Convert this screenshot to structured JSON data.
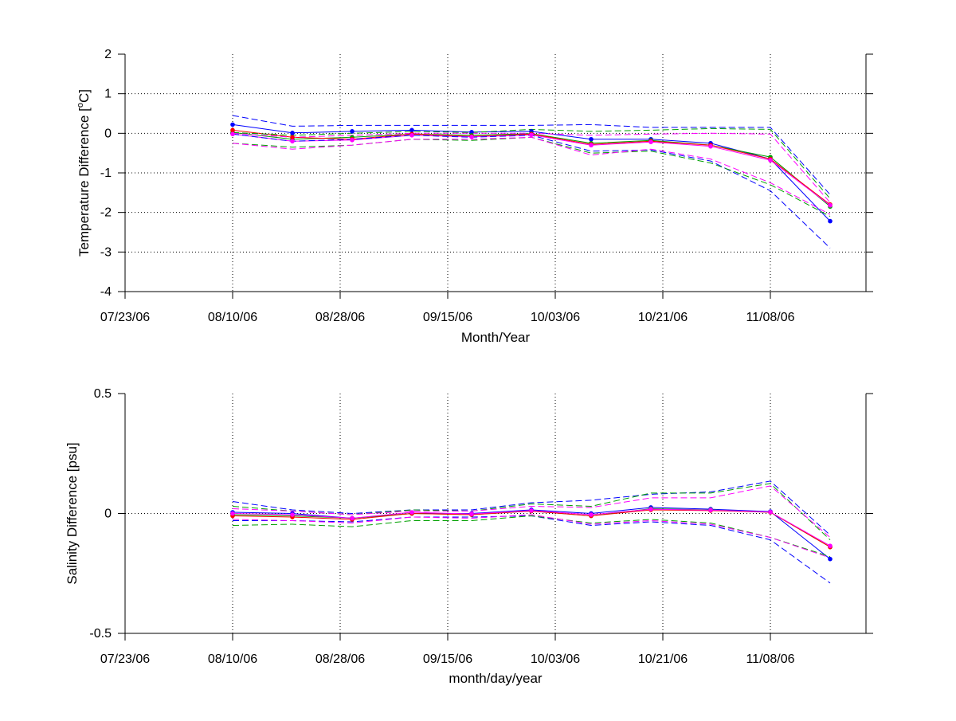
{
  "chart_data": [
    {
      "type": "line",
      "xlabel": "Month/Year",
      "ylabel_main": "Temperature Difference [",
      "ylabel_sup": "o",
      "ylabel_end": "C]",
      "xlim": [
        "2006-07-23",
        "2006-11-24"
      ],
      "ylim": [
        -4,
        2
      ],
      "xticks": [
        {
          "date": "2006-07-23",
          "label": "07/23/06"
        },
        {
          "date": "2006-08-10",
          "label": "08/10/06"
        },
        {
          "date": "2006-08-28",
          "label": "08/28/06"
        },
        {
          "date": "2006-09-15",
          "label": "09/15/06"
        },
        {
          "date": "2006-10-03",
          "label": "10/03/06"
        },
        {
          "date": "2006-10-21",
          "label": "10/21/06"
        },
        {
          "date": "2006-11-08",
          "label": "11/08/06"
        }
      ],
      "yticks": [
        {
          "value": 2,
          "label": "2"
        },
        {
          "value": 1,
          "label": "1"
        },
        {
          "value": 0,
          "label": "0"
        },
        {
          "value": -1,
          "label": "-1"
        },
        {
          "value": -2,
          "label": "-2"
        },
        {
          "value": -3,
          "label": "-3"
        },
        {
          "value": -4,
          "label": "-4"
        }
      ],
      "grid": true,
      "x": [
        "2006-08-10",
        "2006-08-20",
        "2006-08-30",
        "2006-09-09",
        "2006-09-19",
        "2006-09-29",
        "2006-10-09",
        "2006-10-19",
        "2006-10-29",
        "2006-11-08",
        "2006-11-18"
      ],
      "series": [
        {
          "color": "#0000ff",
          "style": "solid",
          "marker": true,
          "values": [
            0.22,
            0.01,
            0.05,
            0.08,
            0.03,
            0.05,
            -0.15,
            -0.15,
            -0.25,
            -0.65,
            -2.22
          ]
        },
        {
          "color": "#00a000",
          "style": "solid",
          "marker": true,
          "values": [
            0.02,
            -0.15,
            -0.1,
            -0.02,
            -0.05,
            -0.01,
            -0.25,
            -0.18,
            -0.3,
            -0.6,
            -1.85
          ]
        },
        {
          "color": "#ff0000",
          "style": "solid",
          "marker": true,
          "values": [
            0.08,
            -0.1,
            -0.15,
            -0.02,
            -0.08,
            -0.02,
            -0.28,
            -0.2,
            -0.3,
            -0.65,
            -1.8
          ]
        },
        {
          "color": "#ff00ff",
          "style": "solid",
          "marker": true,
          "values": [
            -0.02,
            -0.2,
            -0.17,
            -0.05,
            -0.09,
            -0.04,
            -0.3,
            -0.22,
            -0.33,
            -0.68,
            -1.82
          ]
        },
        {
          "color": "#0000ff",
          "style": "dashed",
          "marker": false,
          "values": [
            0.45,
            0.18,
            0.2,
            0.2,
            0.2,
            0.2,
            0.22,
            0.15,
            0.15,
            0.15,
            -1.55
          ]
        },
        {
          "color": "#0000ff",
          "style": "dashed",
          "marker": false,
          "values": [
            -0.02,
            -0.2,
            -0.15,
            -0.05,
            -0.1,
            -0.05,
            -0.45,
            -0.42,
            -0.7,
            -1.45,
            -2.9
          ]
        },
        {
          "color": "#00a000",
          "style": "dashed",
          "marker": false,
          "values": [
            0.02,
            -0.05,
            0.0,
            0.05,
            0.02,
            0.1,
            0.05,
            0.08,
            0.12,
            0.1,
            -1.65
          ]
        },
        {
          "color": "#00a000",
          "style": "dashed",
          "marker": false,
          "values": [
            -0.25,
            -0.35,
            -0.3,
            -0.15,
            -0.18,
            -0.1,
            -0.5,
            -0.45,
            -0.75,
            -1.3,
            -2.1
          ]
        },
        {
          "color": "#ff00ff",
          "style": "dashed",
          "marker": false,
          "values": [
            0.0,
            -0.1,
            -0.05,
            0.0,
            0.0,
            0.0,
            -0.05,
            -0.02,
            0.0,
            -0.02,
            -1.75
          ]
        },
        {
          "color": "#ff00ff",
          "style": "dashed",
          "marker": false,
          "values": [
            -0.25,
            -0.4,
            -0.3,
            -0.15,
            -0.15,
            -0.1,
            -0.55,
            -0.4,
            -0.65,
            -1.25,
            -2.05
          ]
        }
      ]
    },
    {
      "type": "line",
      "xlabel": "month/day/year",
      "ylabel_main": "Salinity Difference [psu]",
      "ylabel_sup": "",
      "ylabel_end": "",
      "xlim": [
        "2006-07-23",
        "2006-11-24"
      ],
      "ylim": [
        -0.5,
        0.5
      ],
      "xticks": [
        {
          "date": "2006-07-23",
          "label": "07/23/06"
        },
        {
          "date": "2006-08-10",
          "label": "08/10/06"
        },
        {
          "date": "2006-08-28",
          "label": "08/28/06"
        },
        {
          "date": "2006-09-15",
          "label": "09/15/06"
        },
        {
          "date": "2006-10-03",
          "label": "10/03/06"
        },
        {
          "date": "2006-10-21",
          "label": "10/21/06"
        },
        {
          "date": "2006-11-08",
          "label": "11/08/06"
        }
      ],
      "yticks": [
        {
          "value": 0.5,
          "label": "0.5"
        },
        {
          "value": 0,
          "label": "0"
        },
        {
          "value": -0.5,
          "label": "-0.5"
        }
      ],
      "grid": true,
      "x": [
        "2006-08-10",
        "2006-08-20",
        "2006-08-30",
        "2006-09-09",
        "2006-09-19",
        "2006-09-29",
        "2006-10-09",
        "2006-10-19",
        "2006-10-29",
        "2006-11-08",
        "2006-11-18"
      ],
      "series": [
        {
          "color": "#0000ff",
          "style": "solid",
          "marker": true,
          "values": [
            0.005,
            0.0,
            -0.02,
            0.0,
            0.0,
            0.015,
            0.0,
            0.025,
            0.018,
            0.008,
            -0.19
          ]
        },
        {
          "color": "#00a000",
          "style": "solid",
          "marker": true,
          "values": [
            -0.005,
            -0.01,
            -0.02,
            0.0,
            -0.005,
            0.01,
            -0.01,
            0.02,
            0.015,
            0.005,
            -0.14
          ]
        },
        {
          "color": "#ff0000",
          "style": "solid",
          "marker": true,
          "values": [
            -0.01,
            -0.015,
            -0.025,
            0.0,
            -0.005,
            0.01,
            -0.01,
            0.015,
            0.012,
            0.005,
            -0.14
          ]
        },
        {
          "color": "#ff00ff",
          "style": "solid",
          "marker": true,
          "values": [
            0.0,
            -0.005,
            -0.02,
            0.005,
            -0.002,
            0.012,
            -0.005,
            0.018,
            0.014,
            0.006,
            -0.135
          ]
        },
        {
          "color": "#0000ff",
          "style": "dashed",
          "marker": false,
          "values": [
            0.05,
            0.015,
            0.0,
            0.015,
            0.015,
            0.045,
            0.055,
            0.08,
            0.09,
            0.135,
            -0.09
          ]
        },
        {
          "color": "#0000ff",
          "style": "dashed",
          "marker": false,
          "values": [
            -0.03,
            -0.03,
            -0.035,
            -0.015,
            -0.015,
            -0.01,
            -0.05,
            -0.035,
            -0.05,
            -0.11,
            -0.29
          ]
        },
        {
          "color": "#00a000",
          "style": "dashed",
          "marker": false,
          "values": [
            0.03,
            0.01,
            -0.005,
            0.015,
            0.01,
            0.04,
            0.03,
            0.085,
            0.085,
            0.125,
            -0.11
          ]
        },
        {
          "color": "#00a000",
          "style": "dashed",
          "marker": false,
          "values": [
            -0.05,
            -0.045,
            -0.055,
            -0.03,
            -0.03,
            -0.01,
            -0.04,
            -0.025,
            -0.04,
            -0.1,
            -0.18
          ]
        },
        {
          "color": "#ff00ff",
          "style": "dashed",
          "marker": false,
          "values": [
            0.02,
            0.01,
            -0.005,
            0.01,
            0.01,
            0.03,
            0.025,
            0.065,
            0.065,
            0.115,
            -0.1
          ]
        },
        {
          "color": "#ff00ff",
          "style": "dashed",
          "marker": false,
          "values": [
            -0.025,
            -0.03,
            -0.04,
            -0.015,
            -0.02,
            -0.005,
            -0.045,
            -0.03,
            -0.045,
            -0.1,
            -0.185
          ]
        }
      ]
    }
  ]
}
